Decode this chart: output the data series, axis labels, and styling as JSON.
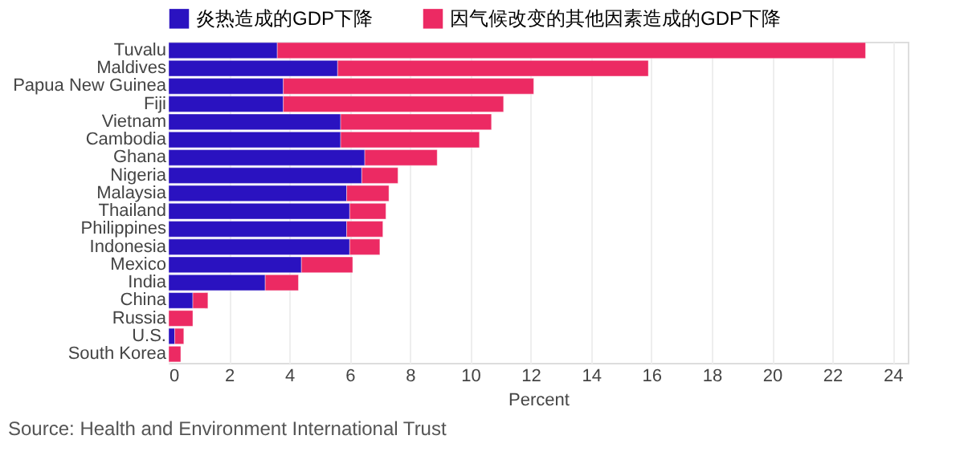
{
  "chart_data": {
    "type": "bar",
    "orientation": "horizontal",
    "stacked": true,
    "categories": [
      "Tuvalu",
      "Maldives",
      "Papua New Guinea",
      "Fiji",
      "Vietnam",
      "Cambodia",
      "Ghana",
      "Nigeria",
      "Malaysia",
      "Thailand",
      "Philippines",
      "Indonesia",
      "Mexico",
      "India",
      "China",
      "Russia",
      "U.S.",
      "South Korea"
    ],
    "series": [
      {
        "name": "炎热造成的GDP下降",
        "color": "#2a12c0",
        "values": [
          3.6,
          5.6,
          3.8,
          3.8,
          5.7,
          5.7,
          6.5,
          6.4,
          5.9,
          6.0,
          5.9,
          6.0,
          4.4,
          3.2,
          0.8,
          0,
          0.2,
          0
        ]
      },
      {
        "name": "因气候改变的其他因素造成的GDP下降",
        "color": "#ec2a63",
        "values": [
          19.5,
          10.3,
          8.3,
          7.3,
          5.0,
          4.6,
          2.4,
          1.2,
          1.4,
          1.2,
          1.2,
          1.0,
          1.7,
          1.1,
          0.5,
          0.8,
          0.3,
          0.4
        ]
      }
    ],
    "xlabel": "Percent",
    "xlim": [
      0,
      24.5
    ],
    "xticks": [
      0,
      2,
      4,
      6,
      8,
      10,
      12,
      14,
      16,
      18,
      20,
      22,
      24
    ],
    "grid": "x",
    "legend": "top left",
    "annotations": [
      "Source: Health and Environment International Trust"
    ]
  }
}
